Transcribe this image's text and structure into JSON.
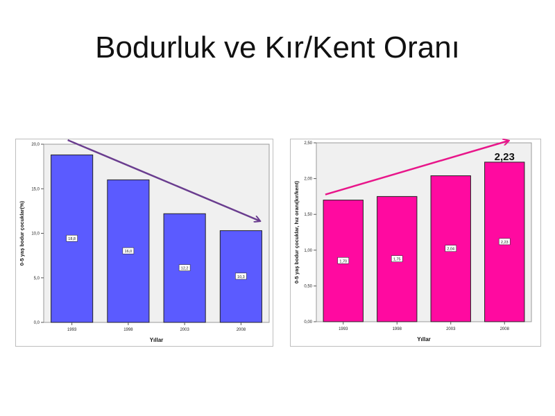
{
  "slide": {
    "title": "Bodurluk ve Kır/Kent Oranı"
  },
  "chart_data": [
    {
      "type": "bar",
      "categories": [
        "1993",
        "1998",
        "2003",
        "2008"
      ],
      "values": [
        18.8,
        16.0,
        12.2,
        10.3
      ],
      "value_labels": [
        "18,8",
        "16,0",
        "12,2",
        "10,3"
      ],
      "xlabel": "Yıllar",
      "ylabel": "0-5 yaş bodur çocuklar(%)",
      "ylim": [
        0,
        20
      ],
      "yticks": [
        0,
        5,
        10,
        15,
        20
      ],
      "ytick_labels": [
        "0,0",
        "5,0",
        "10,0",
        "15,0",
        "20,0"
      ],
      "bar_color": "#5b5bff",
      "arrow_color": "#6a3d8f",
      "trend": "down",
      "grid": false
    },
    {
      "type": "bar",
      "categories": [
        "1993",
        "1998",
        "2003",
        "2008"
      ],
      "values": [
        1.7,
        1.75,
        2.04,
        2.23
      ],
      "value_labels": [
        "1,70",
        "1,75",
        "2,04",
        "2,23"
      ],
      "highlight_label": "2,23",
      "xlabel": "Yıllar",
      "ylabel": "0-5 yaş bodur çocuklar, hız oranı(kır/kent)",
      "ylim": [
        0,
        2.5
      ],
      "yticks": [
        0,
        0.5,
        1.0,
        1.5,
        2.0,
        2.5
      ],
      "ytick_labels": [
        "0,00",
        "0,50",
        "1,00",
        "1,50",
        "2,00",
        "2,50"
      ],
      "bar_color": "#ff0aa0",
      "arrow_color": "#e8168a",
      "trend": "up",
      "grid": false
    }
  ]
}
